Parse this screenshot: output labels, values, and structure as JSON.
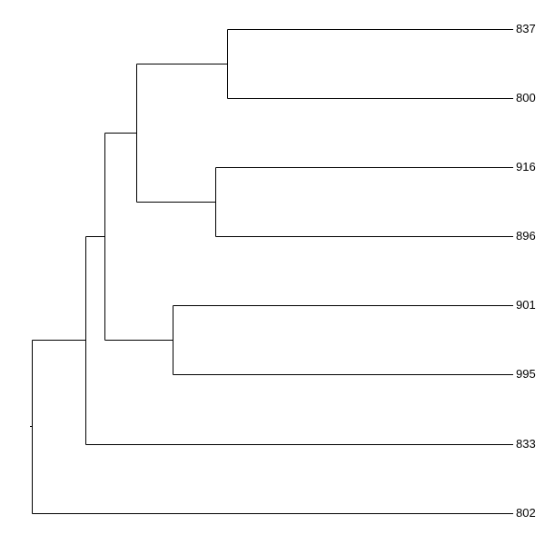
{
  "leaves": [
    "837",
    "800",
    "916",
    "896",
    "901",
    "995",
    "833",
    "802"
  ]
}
